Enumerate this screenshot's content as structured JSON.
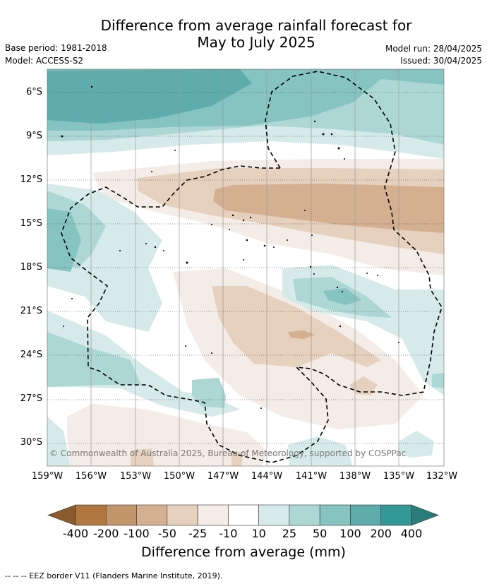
{
  "title_line1": "Difference from average rainfall forecast for",
  "title_line2": "May to July 2025",
  "base_period": "Base period: 1981-2018",
  "model": "Model: ACCESS-S2",
  "model_run": "Model run: 28/04/2025",
  "issued": "Issued: 30/04/2025",
  "copyright": "© Commonwealth of Australia 2025, Bureau of Meteorology, supported by COSPPac",
  "lat_labels": [
    "6°S",
    "9°S",
    "12°S",
    "15°S",
    "18°S",
    "21°S",
    "24°S",
    "27°S",
    "30°S"
  ],
  "lon_labels": [
    "159°W",
    "156°W",
    "153°W",
    "150°W",
    "147°W",
    "144°W",
    "141°W",
    "138°W",
    "135°W",
    "132°W"
  ],
  "colorbar": {
    "labels": [
      "-400",
      "-200",
      "-100",
      "-50",
      "-25",
      "-10",
      "10",
      "25",
      "50",
      "100",
      "200",
      "400"
    ],
    "colors": [
      "#8b5a2b",
      "#b07840",
      "#c4956a",
      "#d4b090",
      "#e6d0be",
      "#f4ece6",
      "#ffffff",
      "#d6ebe9",
      "#acd7d5",
      "#86c4c2",
      "#5eadac",
      "#339996",
      "#2a7c7a"
    ],
    "title": "Difference from average (mm)"
  },
  "legend_text": "--  --  -- EEZ border V11 (Flanders Marine Institute, 2019)."
}
